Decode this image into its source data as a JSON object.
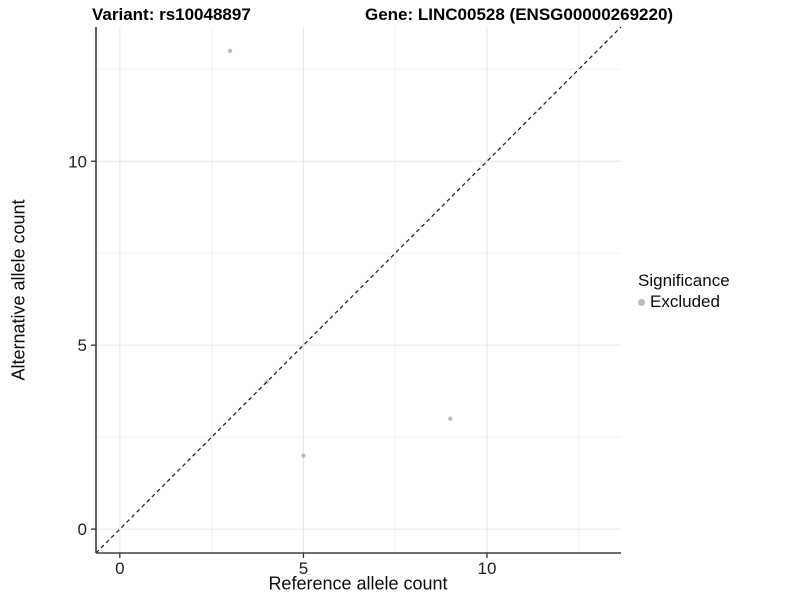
{
  "chart_data": {
    "type": "scatter",
    "title_left": "Variant: rs10048897",
    "title_right": "Gene: LINC00528 (ENSG00000269220)",
    "xlabel": "Reference allele count",
    "ylabel": "Alternative allele count",
    "xlim": [
      -0.65,
      13.65
    ],
    "ylim": [
      -0.65,
      13.65
    ],
    "x_ticks": [
      0,
      5,
      10
    ],
    "y_ticks": [
      0,
      5,
      10
    ],
    "x_minor_ticks": [
      2.5,
      7.5,
      12.5
    ],
    "y_minor_ticks": [
      2.5,
      7.5,
      12.5
    ],
    "grid": "major and minor gridlines on white background",
    "series": [
      {
        "name": "Excluded",
        "color": "#bdbdbd",
        "points": [
          {
            "x": 3,
            "y": 13
          },
          {
            "x": 4,
            "y": 4
          },
          {
            "x": 5,
            "y": 2
          },
          {
            "x": 9,
            "y": 3
          }
        ]
      }
    ],
    "reference_line": {
      "type": "identity",
      "slope": 1,
      "intercept": 0,
      "style": "dashed",
      "color": "#1a1a1a"
    },
    "legend": {
      "title": "Significance",
      "position": "right",
      "entries": [
        {
          "label": "Excluded",
          "color": "#bdbdbd",
          "marker": "circle"
        }
      ]
    },
    "style": {
      "background": "#ffffff",
      "grid_major_color": "#e6e6e6",
      "grid_minor_color": "#f1f1f1",
      "axis_line_color": "#3d3d3d",
      "tick_color": "#333333",
      "text_color": "#1f1f1f",
      "point_radius": 2.2,
      "legend_dot_color": "#bdbdbd"
    }
  }
}
